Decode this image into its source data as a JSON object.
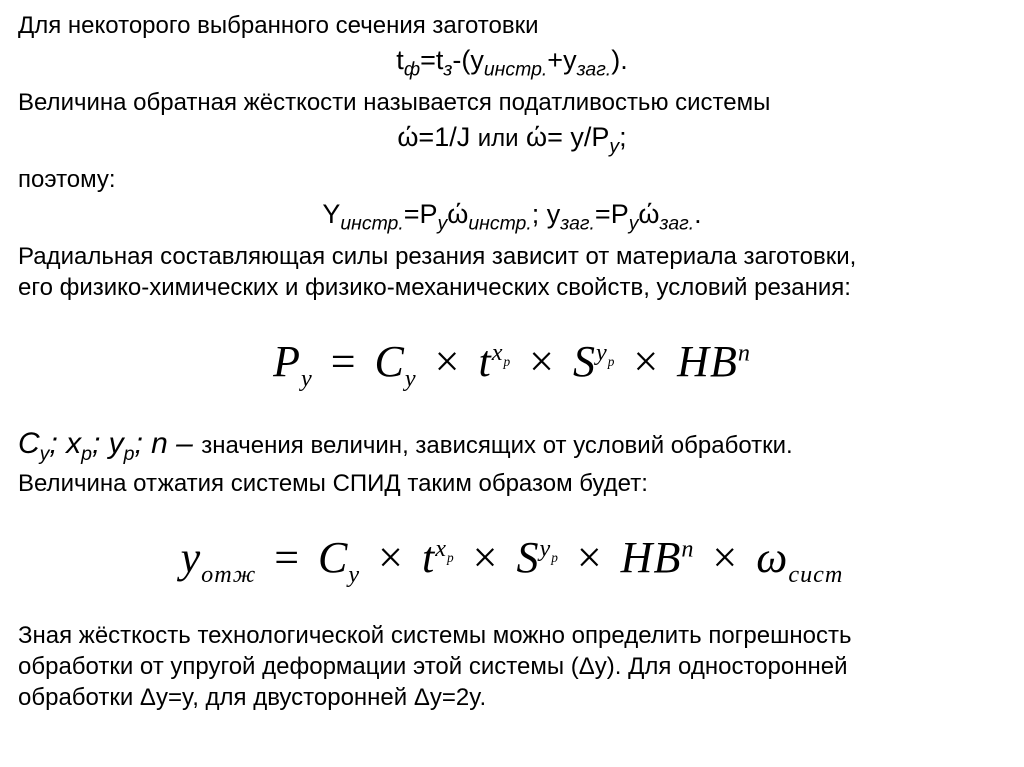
{
  "t1": "Для некоторого выбранного сечения заготовки",
  "eq1_pre": "t",
  "eq1_sub1": "ф",
  "eq1_eq": "=t",
  "eq1_sub2": "з",
  "eq1_mid": "-(y",
  "eq1_sub3": "инстр.",
  "eq1_plus": "+y",
  "eq1_sub4": "заг.",
  "eq1_end": ").",
  "t2": "Величина обратная жёсткости называется податливостью системы",
  "eq2_a": "ώ=1/J ",
  "eq2_or": "или",
  "eq2_b": " ώ= y/P",
  "eq2_bsub": "y",
  "eq2_end": ";",
  "t3": "поэтому:",
  "eq3_Y": "Y",
  "eq3_s1": "инстр.",
  "eq3_eqP": "=P",
  "eq3_ps1": "y",
  "eq3_w": "ώ",
  "eq3_ws1": "инстр.",
  "eq3_sep": "; ",
  "eq3_y2": "y",
  "eq3_s2": "заг.",
  "eq3_eqP2": "=P",
  "eq3_ps2": "y",
  "eq3_w2": "ώ",
  "eq3_ws2": "заг.",
  "eq3_end": ".",
  "t4a": "Радиальная составляющая силы резания зависит от материала заготовки,",
  "t4b": "его физико-химических и физико-механических свойств, условий резания:",
  "m1": {
    "P": "P",
    "Psub": "y",
    "eq": " = ",
    "C": "C",
    "Csub": "y",
    "x1": " × ",
    "t": "t",
    "texp": "x",
    "texpsub": "p",
    "x2": " × ",
    "S": "S",
    "Sexp": "y",
    "Sexpsub": "p",
    "x3": " × ",
    "HB": "HB",
    "HBexp": "n"
  },
  "def_lead_items": "Cᵧ; xₚ; yₚ; n –",
  "def_C": "C",
  "def_Cs": "y",
  "def_x": "x",
  "def_xs": "p",
  "def_y": "y",
  "def_ys": "p",
  "def_n": "n",
  "def_dash": " – ",
  "t5": "значения величин, зависящих от условий обработки.",
  "t6": "Величина отжатия системы СПИД таким образом будет:",
  "m2": {
    "y": "y",
    "ysub": "отж",
    "eq": " = ",
    "C": "C",
    "Csub": "y",
    "x1": " × ",
    "t": "t",
    "texp": "x",
    "texpsub": "p",
    "x2": " × ",
    "S": "S",
    "Sexp": "y",
    "Sexpsub": "p",
    "x3": " × ",
    "HB": "HB",
    "HBexp": "n",
    "x4": " × ",
    "w": "ω",
    "wsub": "сист"
  },
  "t7a": "Зная жёсткость технологической системы можно определить погрешность",
  "t7b": "обработки от упругой деформации этой системы (Δy). Для односторонней",
  "t7c": "обработки Δy=y, для двусторонней Δy=2y."
}
